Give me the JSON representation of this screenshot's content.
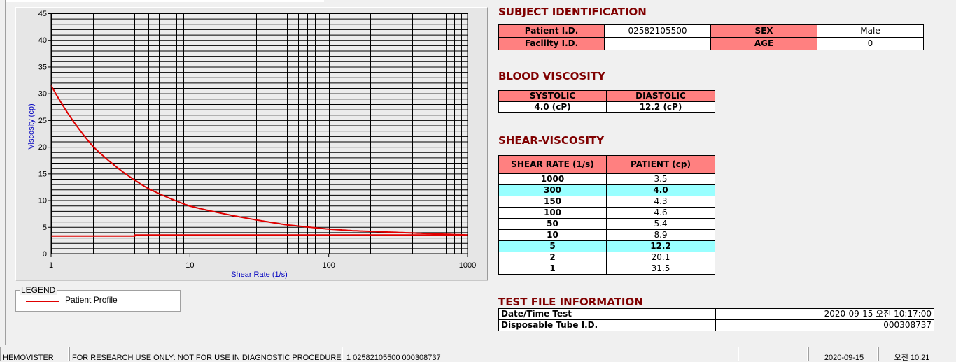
{
  "chart_data": {
    "type": "line",
    "xlabel": "Shear Rate (1/s)",
    "ylabel": "Viscosity (cp)",
    "x_scale": "log",
    "xlim": [
      1,
      1000
    ],
    "ylim": [
      0,
      45
    ],
    "x_ticks": [
      "1",
      "10",
      "100",
      "1000"
    ],
    "y_ticks": [
      "0",
      "5",
      "10",
      "15",
      "20",
      "25",
      "30",
      "35",
      "40",
      "45"
    ],
    "grid": true,
    "legend_title": "LEGEND",
    "legend_placement": "below-left",
    "series": [
      {
        "name": "Patient Profile",
        "color": "#e00000",
        "x": [
          1,
          2,
          5,
          10,
          50,
          100,
          150,
          300,
          1000
        ],
        "y": [
          31.5,
          20.1,
          12.2,
          8.9,
          5.4,
          4.6,
          4.3,
          4.0,
          3.5
        ]
      },
      {
        "color": "#e00000",
        "x": [
          1,
          4,
          4,
          1000
        ],
        "y": [
          3.3,
          3.3,
          3.5,
          3.5
        ]
      }
    ]
  },
  "subject": {
    "title": "SUBJECT IDENTIFICATION",
    "patient_id_label": "Patient I.D.",
    "patient_id": "02582105500",
    "sex_label": "SEX",
    "sex": "Male",
    "facility_id_label": "Facility I.D.",
    "facility_id": "",
    "age_label": "AGE",
    "age": "0"
  },
  "blood": {
    "title": "BLOOD VISCOSITY",
    "systolic_label": "SYSTOLIC",
    "diastolic_label": "DIASTOLIC",
    "systolic": "4.0 (cP)",
    "diastolic": "12.2 (cP)"
  },
  "shear": {
    "title": "SHEAR-VISCOSITY",
    "col1": "SHEAR RATE (1/s)",
    "col2": "PATIENT (cp)",
    "rows": [
      {
        "rate": "1000",
        "value": "3.5",
        "hl": false
      },
      {
        "rate": "300",
        "value": "4.0",
        "hl": true
      },
      {
        "rate": "150",
        "value": "4.3",
        "hl": false
      },
      {
        "rate": "100",
        "value": "4.6",
        "hl": false
      },
      {
        "rate": "50",
        "value": "5.4",
        "hl": false
      },
      {
        "rate": "10",
        "value": "8.9",
        "hl": false
      },
      {
        "rate": "5",
        "value": "12.2",
        "hl": true
      },
      {
        "rate": "2",
        "value": "20.1",
        "hl": false
      },
      {
        "rate": "1",
        "value": "31.5",
        "hl": false
      }
    ],
    "highlight_color": "#99ffff"
  },
  "testfile": {
    "title": "TEST FILE INFORMATION",
    "date_label": "Date/Time Test",
    "date": "2020-09-15   오전 10:17:00",
    "tube_label": "Disposable Tube I.D.",
    "tube": "000308737"
  },
  "status": {
    "app": "HEMOVISTER",
    "notice": "FOR RESEARCH USE ONLY: NOT FOR USE IN DIAGNOSTIC PROCEDURES",
    "record": "1  02582105500  000308737",
    "empty": "",
    "date": "2020-09-15",
    "time": "오전 10:21"
  },
  "colors": {
    "header": "#ff8080",
    "section_title": "#800000",
    "curve": "#e00000",
    "axis_label": "#0000c0"
  }
}
